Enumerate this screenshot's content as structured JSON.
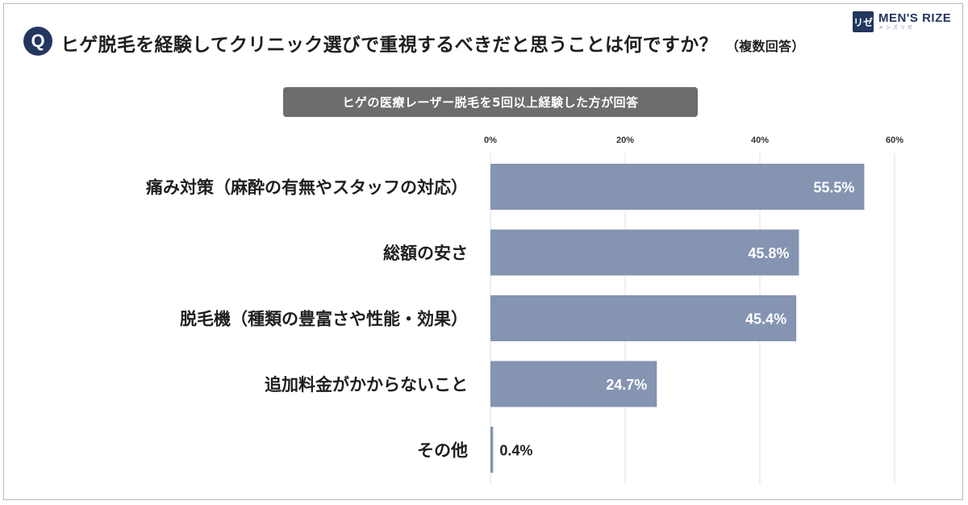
{
  "question_badge": "Q",
  "title": "ヒゲ脱毛を経験してクリニック選びで重視するべきだと思うことは何ですか？",
  "title_note": "（複数回答）",
  "logo": {
    "mark": "リゼ",
    "name": "MEN'S RIZE",
    "sub": "メンズリゼ"
  },
  "subtitle": "ヒゲの医療レーザー脱毛を5回以上経験した方が回答",
  "colors": {
    "bar": "#8494b1",
    "badge": "#22365f",
    "subtitle_bg": "#6d6d6d",
    "grid": "#e2e2e2"
  },
  "chart_data": {
    "type": "bar",
    "orientation": "horizontal",
    "categories": [
      "痛み対策（麻酔の有無やスタッフの対応）",
      "総額の安さ",
      "脱毛機（種類の豊富さや性能・効果）",
      "追加料金がかからないこと",
      "その他"
    ],
    "values": [
      55.5,
      45.8,
      45.4,
      24.7,
      0.4
    ],
    "value_labels": [
      "55.5%",
      "45.8%",
      "45.4%",
      "24.7%",
      "0.4%"
    ],
    "xlim": [
      0,
      60
    ],
    "xticks": [
      0,
      20,
      40,
      60
    ],
    "xtick_labels": [
      "0%",
      "20%",
      "40%",
      "60%"
    ],
    "grid": true,
    "axis_position": "top"
  }
}
